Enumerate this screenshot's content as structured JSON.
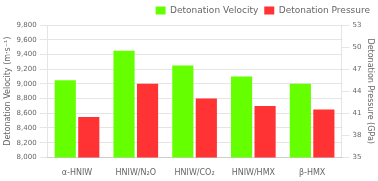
{
  "chart_data": {
    "type": "bar",
    "categories": [
      "α-HNIW",
      "HNIW/N₂O",
      "HNIW/CO₂",
      "HNIW/HMX",
      "β-HMX"
    ],
    "series": [
      {
        "name": "Detonation Velocity",
        "color": "#66ff00",
        "values": [
          9050,
          9450,
          9250,
          9100,
          9000
        ]
      },
      {
        "name": "Detonation Pressure",
        "color": "#ff3333",
        "values": [
          40.5,
          45.0,
          43.0,
          42.0,
          41.5
        ],
        "axis": "y2"
      }
    ],
    "ylabel": "Detonation Velocity (m·s⁻¹)",
    "y2label": "Detonation Pressure (GPa)",
    "ylim": [
      8000,
      9800
    ],
    "yticks": [
      8000,
      8200,
      8400,
      8600,
      8800,
      9000,
      9200,
      9400,
      9600,
      9800
    ],
    "y2lim": [
      35,
      53
    ],
    "y2ticks": [
      35,
      38,
      41,
      44,
      47,
      50,
      53
    ],
    "grid": true,
    "legend": "upper right"
  }
}
